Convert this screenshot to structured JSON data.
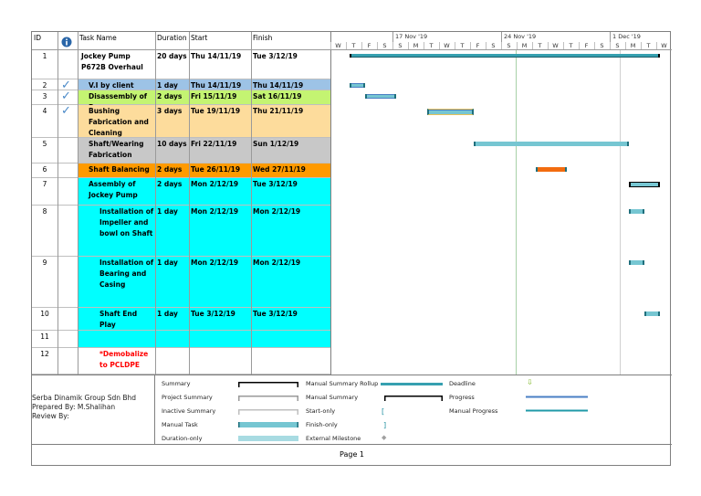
{
  "columns": {
    "id": "ID",
    "task_name": "Task Name",
    "duration": "Duration",
    "start": "Start",
    "finish": "Finish"
  },
  "timescale": {
    "weeks": [
      "17 Nov '19",
      "24 Nov '19",
      "1 Dec '19"
    ],
    "days": [
      "W",
      "T",
      "F",
      "S",
      "S",
      "M",
      "T",
      "W",
      "T",
      "F",
      "S",
      "S",
      "M",
      "T",
      "W",
      "T",
      "F",
      "S",
      "S",
      "M",
      "T",
      "W"
    ]
  },
  "tasks": [
    {
      "id": "1",
      "done": false,
      "name": "Jockey Pump P672B Overhaul",
      "duration": "20 days",
      "start": "Thu 14/11/19",
      "finish": "Tue 3/12/19",
      "color": "#ffffff",
      "name_color": "#000000",
      "bar_start": "2019-11-14",
      "bar_end": "2019-12-03",
      "bar_type": "summary-rollup"
    },
    {
      "id": "2",
      "done": true,
      "name": "V.I by client",
      "duration": "1 day",
      "start": "Thu 14/11/19",
      "finish": "Thu 14/11/19",
      "color": "#9dc3e6",
      "name_color": "#000000",
      "bar_start": "2019-11-14",
      "bar_end": "2019-11-14",
      "bar_type": "task-complete"
    },
    {
      "id": "3",
      "done": true,
      "name": "Disassembly of Pump",
      "duration": "2 days",
      "start": "Fri 15/11/19",
      "finish": "Sat 16/11/19",
      "color": "#c4f472",
      "name_color": "#000000",
      "bar_start": "2019-11-15",
      "bar_end": "2019-11-16",
      "bar_type": "task-complete"
    },
    {
      "id": "4",
      "done": true,
      "name": "Bushing Fabrication and Cleaning",
      "duration": "3 days",
      "start": "Tue 19/11/19",
      "finish": "Thu 21/11/19",
      "color": "#fddc9c",
      "name_color": "#000000",
      "bar_start": "2019-11-19",
      "bar_end": "2019-11-21",
      "bar_type": "task-yellow"
    },
    {
      "id": "5",
      "done": false,
      "name": "Shaft/Wearing Fabrication",
      "duration": "10 days",
      "start": "Fri 22/11/19",
      "finish": "Sun 1/12/19",
      "color": "#c8c8c8",
      "name_color": "#000000",
      "bar_start": "2019-11-22",
      "bar_end": "2019-12-01",
      "bar_type": "task"
    },
    {
      "id": "6",
      "done": false,
      "name": "Shaft Balancing",
      "duration": "2 days",
      "start": "Tue 26/11/19",
      "finish": "Wed 27/11/19",
      "color": "#ff9a00",
      "name_color": "#000000",
      "bar_start": "2019-11-26",
      "bar_end": "2019-11-27",
      "bar_type": "task-orange"
    },
    {
      "id": "7",
      "done": false,
      "name": "Assembly of Jockey Pump",
      "duration": "2 days",
      "start": "Mon 2/12/19",
      "finish": "Tue 3/12/19",
      "color": "#00ffff",
      "name_color": "#000000",
      "bar_start": "2019-12-02",
      "bar_end": "2019-12-03",
      "bar_type": "summary"
    },
    {
      "id": "8",
      "done": false,
      "name": "Installation of Impeller and bowl on Shaft",
      "duration": "1 day",
      "start": "Mon 2/12/19",
      "finish": "Mon 2/12/19",
      "color": "#00ffff",
      "name_color": "#000000",
      "bar_start": "2019-12-02",
      "bar_end": "2019-12-02",
      "bar_type": "task"
    },
    {
      "id": "9",
      "done": false,
      "name": "Installation of Bearing and Casing",
      "duration": "1 day",
      "start": "Mon 2/12/19",
      "finish": "Mon 2/12/19",
      "color": "#00ffff",
      "name_color": "#000000",
      "bar_start": "2019-12-02",
      "bar_end": "2019-12-02",
      "bar_type": "task"
    },
    {
      "id": "10",
      "done": false,
      "name": "Shaft End Play",
      "duration": "1 day",
      "start": "Tue 3/12/19",
      "finish": "Tue 3/12/19",
      "color": "#00ffff",
      "name_color": "#000000",
      "bar_start": "2019-12-03",
      "bar_end": "2019-12-03",
      "bar_type": "task"
    },
    {
      "id": "11",
      "done": false,
      "name": "",
      "duration": "",
      "start": "",
      "finish": "",
      "color": "#00ffff",
      "name_color": "#000000",
      "bar_start": null,
      "bar_end": null,
      "bar_type": null
    },
    {
      "id": "12",
      "done": false,
      "name": "*Demobalize to PCLDPE",
      "duration": "",
      "start": "",
      "finish": "",
      "color": "#ffffff",
      "name_color": "#ff0000",
      "bar_start": null,
      "bar_end": null,
      "bar_type": null
    }
  ],
  "legend": {
    "project_info": [
      "Serba Dinamik Group Sdn Bhd",
      "Prepared By: M.Shalihan",
      "Review By:"
    ],
    "items": {
      "summary": "Summary",
      "project_summary": "Project Summary",
      "inactive_summary": "Inactive Summary",
      "manual_task": "Manual Task",
      "duration_only": "Duration-only",
      "manual_summary_rollup": "Manual Summary Rollup",
      "manual_summary": "Manual Summary",
      "start_only": "Start-only",
      "finish_only": "Finish-only",
      "external_milestone": "External Milestone",
      "deadline": "Deadline",
      "progress": "Progress",
      "manual_progress": "Manual Progress"
    }
  },
  "footer": {
    "page": "Page 1"
  },
  "colors": {
    "bar": "#76c6d2",
    "rollup": "#36a0b0",
    "progress": "#4a7fc4",
    "orange": "#f26c0f",
    "yellow_border": "#e6c25a",
    "check": "#4a89c8",
    "deadline": "#7ab520"
  }
}
